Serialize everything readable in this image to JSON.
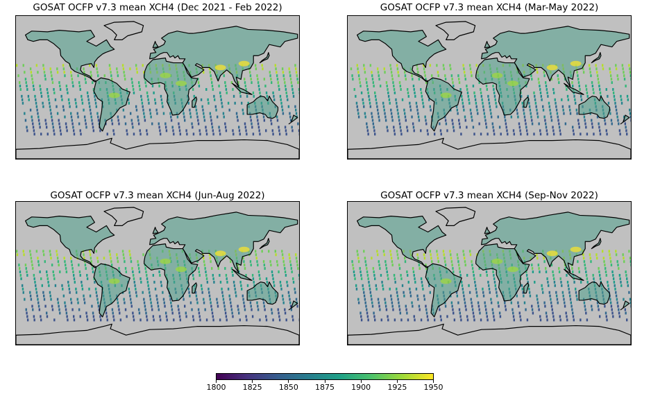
{
  "panels": [
    {
      "title": "GOSAT OCFP v7.3 mean XCH4 (Dec 2021 - Feb 2022)",
      "season": "djf"
    },
    {
      "title": "GOSAT OCFP v7.3 mean XCH4 (Mar-May 2022)",
      "season": "mam"
    },
    {
      "title": "GOSAT OCFP v7.3 mean XCH4 (Jun-Aug 2022)",
      "season": "jja"
    },
    {
      "title": "GOSAT OCFP v7.3 mean XCH4 (Sep-Nov 2022)",
      "season": "son"
    }
  ],
  "colorbar": {
    "min": 1800,
    "max": 1950,
    "ticks": [
      "1800",
      "1825",
      "1850",
      "1875",
      "1900",
      "1925",
      "1950"
    ],
    "colormap": "viridis"
  },
  "colors": {
    "ocean": "#c0c0c0",
    "coast": "#000000"
  }
}
